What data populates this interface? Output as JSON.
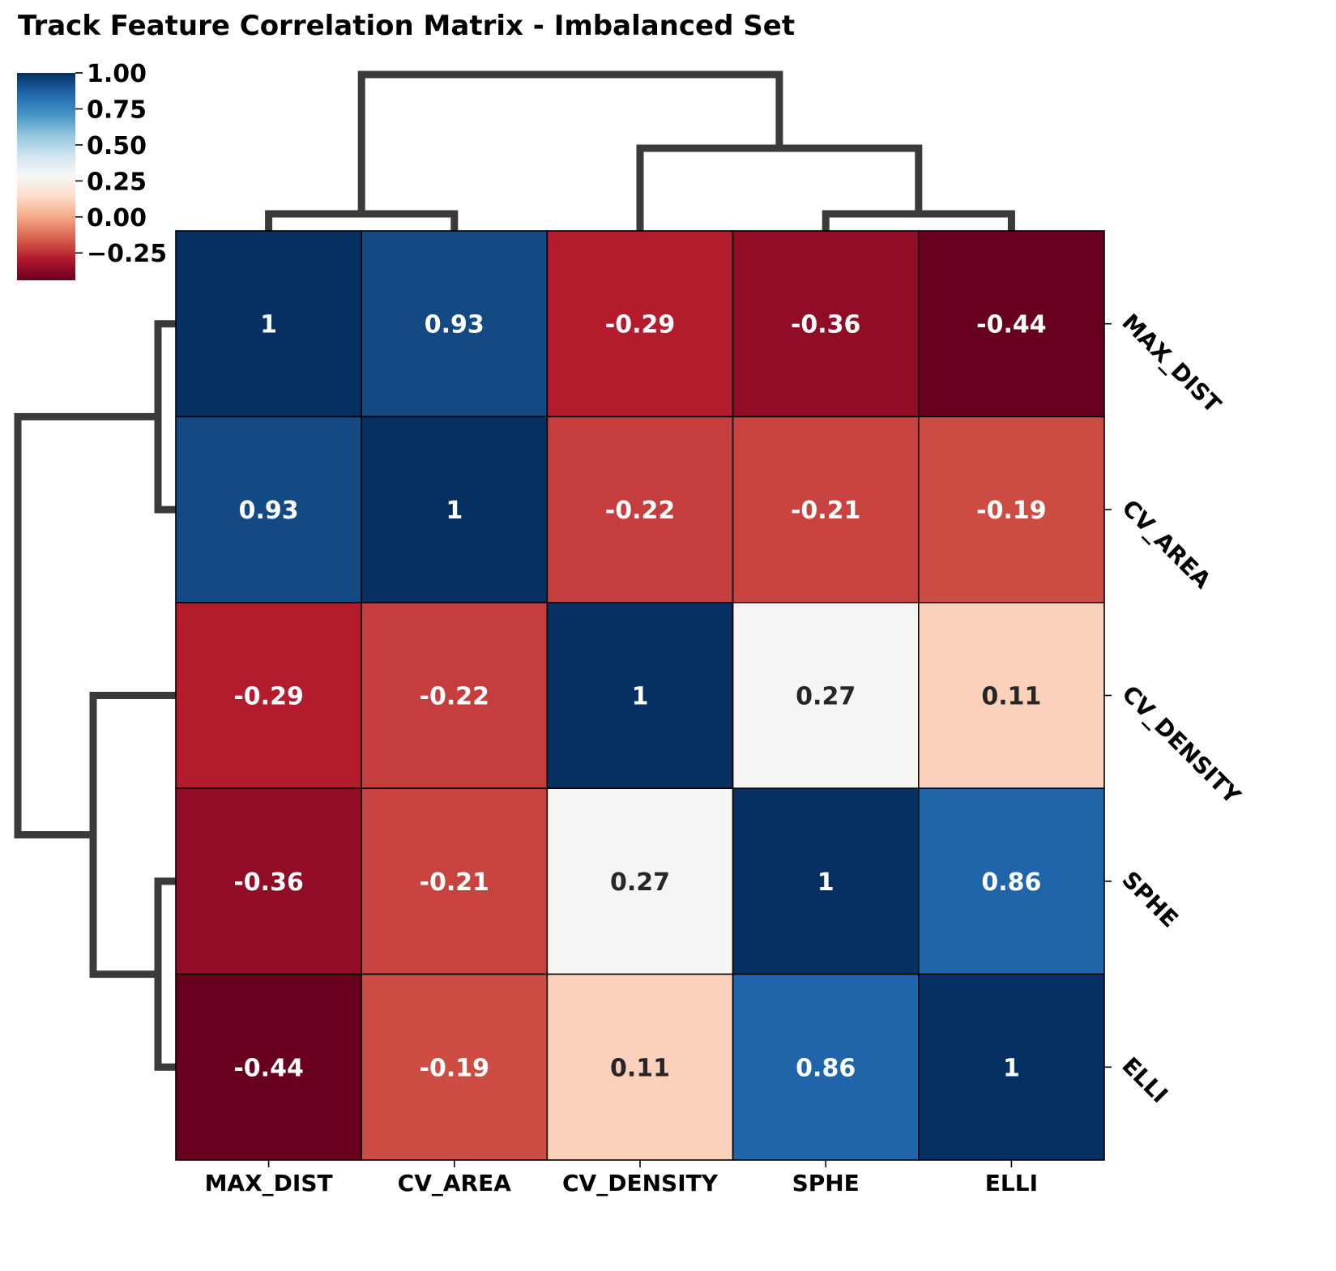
{
  "chart_data": {
    "type": "heatmap",
    "title": "Track Feature Correlation Matrix - Imbalanced Set",
    "rows": [
      "MAX_DIST",
      "CV_AREA",
      "CV_DENSITY",
      "SPHE",
      "ELLI"
    ],
    "columns": [
      "MAX_DIST",
      "CV_AREA",
      "CV_DENSITY",
      "SPHE",
      "ELLI"
    ],
    "values": [
      [
        1.0,
        0.93,
        -0.29,
        -0.36,
        -0.44
      ],
      [
        0.93,
        1.0,
        -0.22,
        -0.21,
        -0.19
      ],
      [
        -0.29,
        -0.22,
        1.0,
        0.27,
        0.11
      ],
      [
        -0.36,
        -0.21,
        0.27,
        1.0,
        0.86
      ],
      [
        -0.44,
        -0.19,
        0.11,
        0.86,
        1.0
      ]
    ],
    "cell_labels": [
      [
        "1",
        "0.93",
        "-0.29",
        "-0.36",
        "-0.44"
      ],
      [
        "0.93",
        "1",
        "-0.22",
        "-0.21",
        "-0.19"
      ],
      [
        "-0.29",
        "-0.22",
        "1",
        "0.27",
        "0.11"
      ],
      [
        "-0.36",
        "-0.21",
        "0.27",
        "1",
        "0.86"
      ],
      [
        "-0.44",
        "-0.19",
        "0.11",
        "0.86",
        "1"
      ]
    ],
    "colormap": "RdBu",
    "vmin": -0.44,
    "vmax": 1.0,
    "colorbar": {
      "ticks": [
        1.0,
        0.75,
        0.5,
        0.25,
        0.0,
        -0.25
      ],
      "tick_labels": [
        "1.00",
        "0.75",
        "0.50",
        "0.25",
        "0.00",
        "−0.25"
      ],
      "placement": "top-left"
    },
    "dendrogram": {
      "top": "columns",
      "left": "rows",
      "linkage_description": "((MAX_DIST, CV_AREA), (CV_DENSITY, (SPHE, ELLI)))"
    },
    "row_label_position": "right",
    "row_label_rotation": "diagonal",
    "grid": false
  }
}
